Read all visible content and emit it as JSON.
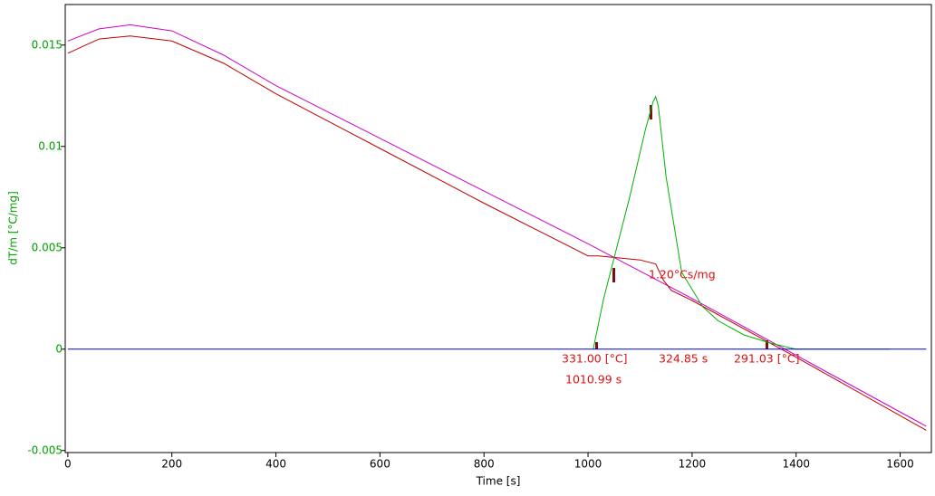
{
  "chart_data": {
    "type": "line",
    "xlabel": "Time [s]",
    "ylabel": "dT/m  [°C/mg]",
    "xlim": [
      -5,
      1660
    ],
    "ylim": [
      -0.0051,
      0.017
    ],
    "xticks": [
      0,
      200,
      400,
      600,
      800,
      1000,
      1200,
      1400,
      1600
    ],
    "yticks": [
      -0.005,
      0,
      0.005,
      0.01,
      0.015
    ],
    "series": [
      {
        "color": "#cc00cc",
        "x": [
          0,
          60,
          120,
          200,
          300,
          400,
          600,
          800,
          1000,
          1200,
          1400,
          1650
        ],
        "values": [
          0.0152,
          0.0158,
          0.016,
          0.0157,
          0.0145,
          0.013,
          0.0104,
          0.0078,
          0.0052,
          0.0025,
          -0.0003,
          -0.0038
        ]
      },
      {
        "color": "#c00000",
        "x": [
          0,
          60,
          120,
          200,
          300,
          400,
          600,
          800,
          1000,
          1020,
          1100,
          1130,
          1145,
          1160,
          1200,
          1400,
          1650
        ],
        "values": [
          0.0146,
          0.0153,
          0.01545,
          0.0152,
          0.0141,
          0.0126,
          0.0099,
          0.0072,
          0.0046,
          0.0046,
          0.0044,
          0.0042,
          0.0034,
          0.0029,
          0.0024,
          -0.0004,
          -0.004
        ]
      },
      {
        "color": "#00b000",
        "x": [
          1010,
          1030,
          1050,
          1080,
          1110,
          1125,
          1130,
          1135,
          1150,
          1180,
          1220,
          1250,
          1300,
          1350,
          1400,
          1580
        ],
        "values": [
          0,
          0.0025,
          0.0045,
          0.0075,
          0.0108,
          0.0122,
          0.01245,
          0.012,
          0.0085,
          0.0038,
          0.0021,
          0.0014,
          0.0007,
          0.0003,
          0,
          0
        ]
      },
      {
        "color": "#0000c0",
        "x": [
          0,
          1650
        ],
        "values": [
          0,
          0
        ]
      }
    ],
    "annotations": [
      "331.00 [°C]",
      "1010.99 s",
      "324.85 s",
      "291.03 [°C]",
      "1.20°Cs/mg"
    ]
  }
}
